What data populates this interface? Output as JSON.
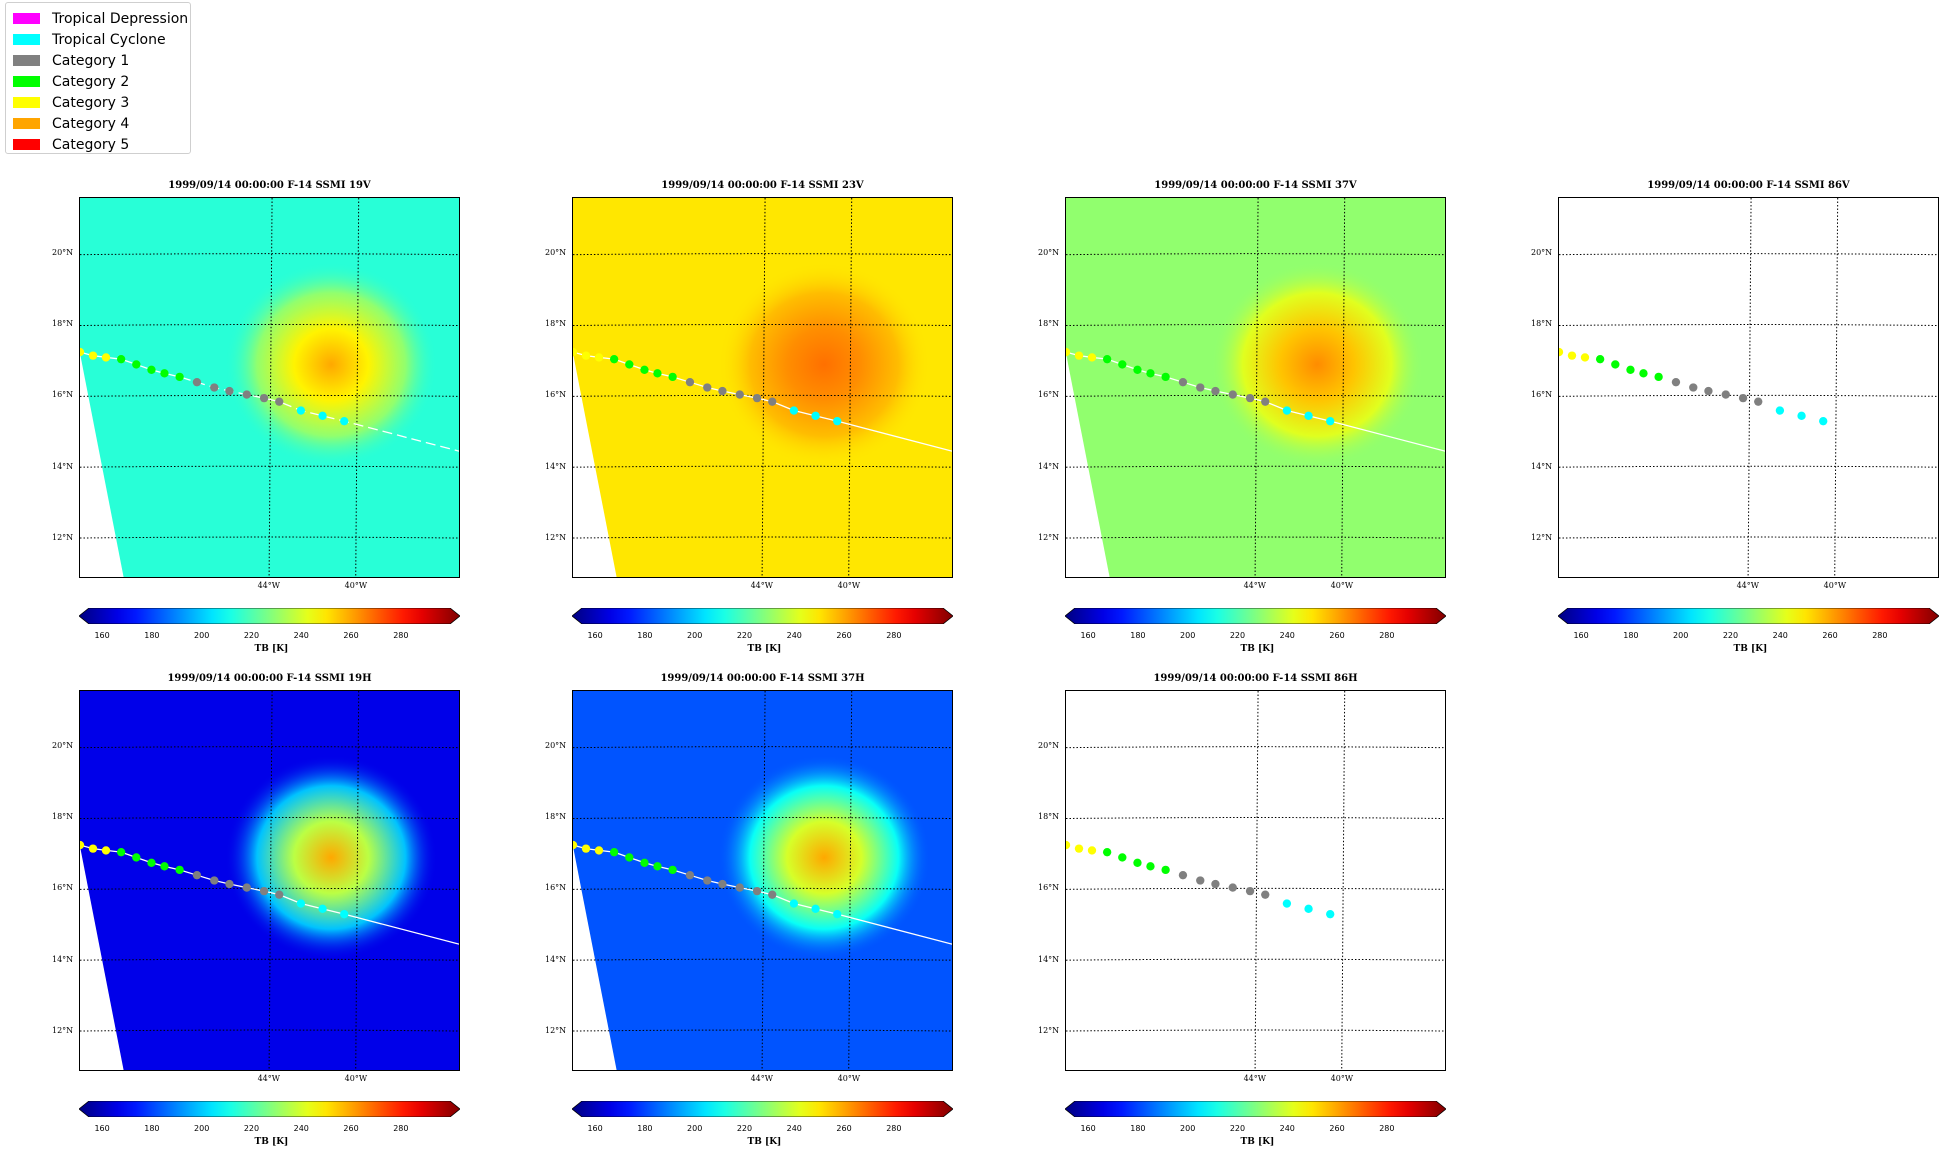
{
  "legend": {
    "items": [
      {
        "label": "Tropical Depression",
        "color": "#ff00ff"
      },
      {
        "label": "Tropical Cyclone",
        "color": "#00ffff"
      },
      {
        "label": "Category 1",
        "color": "#808080"
      },
      {
        "label": "Category 2",
        "color": "#00ff00"
      },
      {
        "label": "Category 3",
        "color": "#ffff00"
      },
      {
        "label": "Category 4",
        "color": "#ffa500"
      },
      {
        "label": "Category 5",
        "color": "#ff0000"
      }
    ]
  },
  "chart_data": [
    {
      "type": "heatmap",
      "title": "1999/09/14 00:00:00  F-14 SSMI 19V",
      "colorbar_label": "TB [K]",
      "colorbar_ticks": [
        "160",
        "180",
        "200",
        "220",
        "240",
        "260",
        "280"
      ],
      "colorbar_range": [
        155,
        300
      ],
      "background_tb": 215,
      "eye_tb": 258,
      "has_data": true,
      "track_line": "dashed"
    },
    {
      "type": "heatmap",
      "title": "1999/09/14 00:00:00  F-14 SSMI 23V",
      "colorbar_label": "TB [K]",
      "colorbar_ticks": [
        "160",
        "180",
        "200",
        "220",
        "240",
        "260",
        "280"
      ],
      "colorbar_range": [
        155,
        300
      ],
      "background_tb": 249,
      "eye_tb": 266,
      "has_data": true,
      "track_line": "solid"
    },
    {
      "type": "heatmap",
      "title": "1999/09/14 00:00:00  F-14 SSMI 37V",
      "colorbar_label": "TB [K]",
      "colorbar_ticks": [
        "160",
        "180",
        "200",
        "220",
        "240",
        "260",
        "280"
      ],
      "colorbar_range": [
        155,
        300
      ],
      "background_tb": 230,
      "eye_tb": 262,
      "has_data": true,
      "track_line": "solid"
    },
    {
      "type": "heatmap",
      "title": "1999/09/14 00:00:00  F-14 SSMI 86V",
      "colorbar_label": "TB [K]",
      "colorbar_ticks": [
        "160",
        "180",
        "200",
        "220",
        "240",
        "260",
        "280"
      ],
      "colorbar_range": [
        155,
        300
      ],
      "has_data": false,
      "track_line": "none"
    },
    {
      "type": "heatmap",
      "title": "1999/09/14 00:00:00  F-14 SSMI 19H",
      "colorbar_label": "TB [K]",
      "colorbar_ticks": [
        "160",
        "180",
        "200",
        "220",
        "240",
        "260",
        "280"
      ],
      "colorbar_range": [
        155,
        300
      ],
      "background_tb": 170,
      "eye_tb": 258,
      "has_data": true,
      "track_line": "solid"
    },
    {
      "type": "heatmap",
      "title": "1999/09/14 00:00:00  F-14 SSMI 37H",
      "colorbar_label": "TB [K]",
      "colorbar_ticks": [
        "160",
        "180",
        "200",
        "220",
        "240",
        "260",
        "280"
      ],
      "colorbar_range": [
        155,
        300
      ],
      "background_tb": 185,
      "eye_tb": 258,
      "has_data": true,
      "track_line": "solid"
    },
    {
      "type": "heatmap",
      "title": "1999/09/14 00:00:00  F-14 SSMI 86H",
      "colorbar_label": "TB [K]",
      "colorbar_ticks": [
        "160",
        "180",
        "200",
        "220",
        "240",
        "260",
        "280"
      ],
      "colorbar_range": [
        155,
        300
      ],
      "has_data": false,
      "track_line": "none"
    }
  ],
  "map": {
    "lon_range": [
      -52.8,
      -35.3
    ],
    "lat_range": [
      10.9,
      21.6
    ],
    "lat_ticks": [
      {
        "value": 12,
        "label": "12°N"
      },
      {
        "value": 14,
        "label": "14°N"
      },
      {
        "value": 16,
        "label": "16°N"
      },
      {
        "value": 18,
        "label": "18°N"
      },
      {
        "value": 20,
        "label": "20°N"
      }
    ],
    "lon_ticks": [
      {
        "value": -44,
        "label": "44°W"
      },
      {
        "value": -40,
        "label": "40°W"
      }
    ],
    "storm_center": {
      "lon": -41.2,
      "lat": 16.9
    }
  },
  "track": [
    {
      "lon": -52.8,
      "lat": 17.25,
      "category": "Category 3"
    },
    {
      "lon": -52.2,
      "lat": 17.15,
      "category": "Category 3"
    },
    {
      "lon": -51.6,
      "lat": 17.1,
      "category": "Category 3"
    },
    {
      "lon": -50.9,
      "lat": 17.05,
      "category": "Category 2"
    },
    {
      "lon": -50.2,
      "lat": 16.9,
      "category": "Category 2"
    },
    {
      "lon": -49.5,
      "lat": 16.75,
      "category": "Category 2"
    },
    {
      "lon": -48.9,
      "lat": 16.65,
      "category": "Category 2"
    },
    {
      "lon": -48.2,
      "lat": 16.55,
      "category": "Category 2"
    },
    {
      "lon": -47.4,
      "lat": 16.4,
      "category": "Category 1"
    },
    {
      "lon": -46.6,
      "lat": 16.25,
      "category": "Category 1"
    },
    {
      "lon": -45.9,
      "lat": 16.15,
      "category": "Category 1"
    },
    {
      "lon": -45.1,
      "lat": 16.05,
      "category": "Category 1"
    },
    {
      "lon": -44.3,
      "lat": 15.95,
      "category": "Category 1"
    },
    {
      "lon": -43.6,
      "lat": 15.85,
      "category": "Category 1"
    },
    {
      "lon": -42.6,
      "lat": 15.6,
      "category": "Tropical Cyclone"
    },
    {
      "lon": -41.6,
      "lat": 15.45,
      "category": "Tropical Cyclone"
    },
    {
      "lon": -40.6,
      "lat": 15.3,
      "category": "Tropical Cyclone"
    }
  ]
}
